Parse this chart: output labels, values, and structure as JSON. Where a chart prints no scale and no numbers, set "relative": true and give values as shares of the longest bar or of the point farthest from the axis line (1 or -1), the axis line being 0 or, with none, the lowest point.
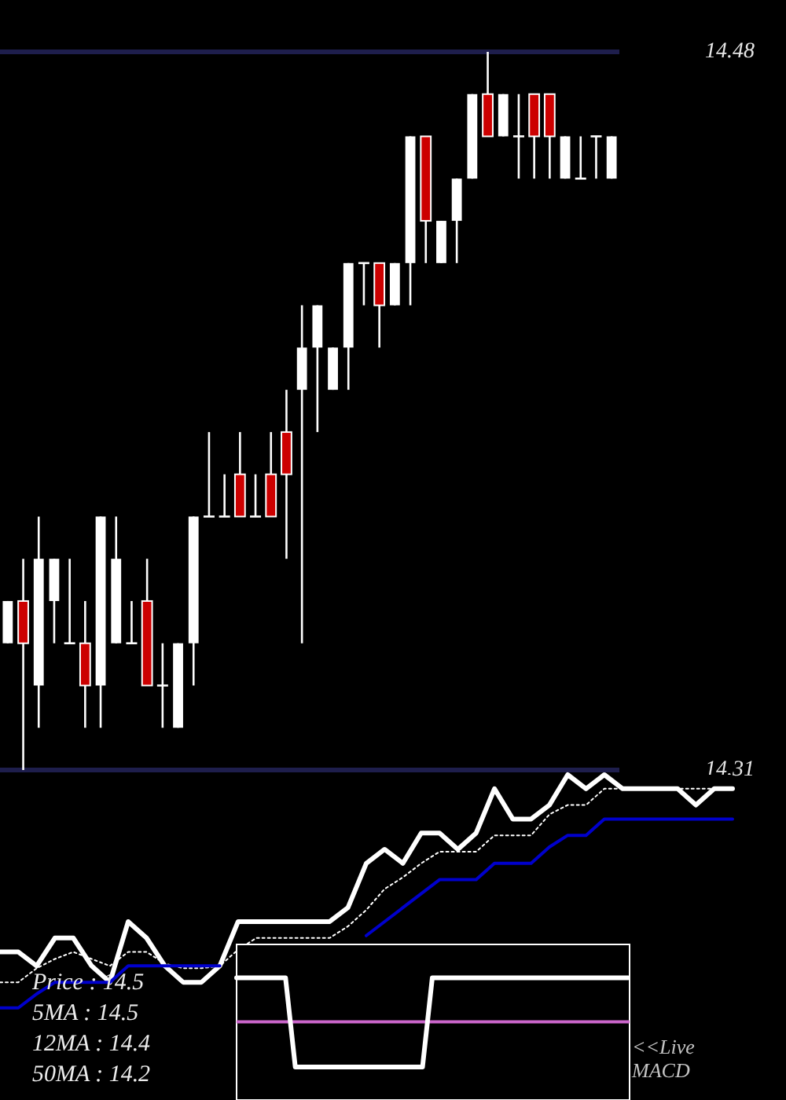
{
  "chart_data": [
    {
      "type": "candlestick",
      "categories": [
        null,
        null,
        null,
        null,
        null,
        null,
        null,
        null,
        null,
        null,
        null,
        null,
        null,
        null,
        null,
        null,
        null,
        null,
        null,
        null,
        null,
        null,
        null,
        null,
        null,
        null,
        null,
        null,
        null,
        null,
        null,
        null,
        null,
        null,
        null,
        null,
        null,
        null,
        null,
        null
      ],
      "ohlc": [
        [
          14.34,
          14.35,
          14.34,
          14.35
        ],
        [
          14.35,
          14.36,
          14.31,
          14.34
        ],
        [
          14.33,
          14.37,
          14.32,
          14.36
        ],
        [
          14.35,
          14.36,
          14.34,
          14.36
        ],
        [
          14.34,
          14.36,
          14.34,
          14.34
        ],
        [
          14.34,
          14.35,
          14.32,
          14.33
        ],
        [
          14.33,
          14.37,
          14.32,
          14.37
        ],
        [
          14.34,
          14.37,
          14.34,
          14.36
        ],
        [
          14.34,
          14.35,
          14.34,
          14.34
        ],
        [
          14.35,
          14.36,
          14.33,
          14.33
        ],
        [
          14.33,
          14.34,
          14.32,
          14.33
        ],
        [
          14.32,
          14.34,
          14.32,
          14.34
        ],
        [
          14.34,
          14.37,
          14.33,
          14.37
        ],
        [
          14.37,
          14.39,
          14.37,
          14.37
        ],
        [
          14.37,
          14.38,
          14.37,
          14.37
        ],
        [
          14.38,
          14.39,
          14.37,
          14.37
        ],
        [
          14.37,
          14.38,
          14.37,
          14.37
        ],
        [
          14.38,
          14.39,
          14.37,
          14.37
        ],
        [
          14.39,
          14.4,
          14.36,
          14.38
        ],
        [
          14.4,
          14.42,
          14.34,
          14.41
        ],
        [
          14.41,
          14.42,
          14.39,
          14.42
        ],
        [
          14.4,
          14.41,
          14.4,
          14.41
        ],
        [
          14.41,
          14.43,
          14.4,
          14.43
        ],
        [
          14.43,
          14.43,
          14.42,
          14.43
        ],
        [
          14.43,
          14.43,
          14.41,
          14.42
        ],
        [
          14.42,
          14.43,
          14.42,
          14.43
        ],
        [
          14.43,
          14.46,
          14.42,
          14.46
        ],
        [
          14.46,
          14.46,
          14.43,
          14.44
        ],
        [
          14.43,
          14.44,
          14.43,
          14.44
        ],
        [
          14.44,
          14.45,
          14.43,
          14.45
        ],
        [
          14.45,
          14.47,
          14.45,
          14.47
        ],
        [
          14.47,
          14.48,
          14.46,
          14.46
        ],
        [
          14.46,
          14.47,
          14.46,
          14.47
        ],
        [
          14.46,
          14.47,
          14.45,
          14.46
        ],
        [
          14.47,
          14.47,
          14.45,
          14.46
        ],
        [
          14.47,
          14.47,
          14.45,
          14.46
        ],
        [
          14.45,
          14.46,
          14.45,
          14.46
        ],
        [
          14.45,
          14.46,
          14.45,
          14.45
        ],
        [
          14.46,
          14.46,
          14.45,
          14.46
        ],
        [
          14.45,
          14.46,
          14.45,
          14.46
        ]
      ],
      "colors": [
        "#ffffff",
        "#cc0000",
        "#ffffff",
        "#ffffff",
        "#ffffff",
        "#cc0000",
        "#ffffff",
        "#ffffff",
        "#ffffff",
        "#cc0000",
        "#ffffff",
        "#ffffff",
        "#ffffff",
        "#ffffff",
        "#ffffff",
        "#cc0000",
        "#ffffff",
        "#cc0000",
        "#cc0000",
        "#ffffff",
        "#ffffff",
        "#ffffff",
        "#ffffff",
        "#ffffff",
        "#cc0000",
        "#ffffff",
        "#ffffff",
        "#cc0000",
        "#ffffff",
        "#ffffff",
        "#ffffff",
        "#cc0000",
        "#ffffff",
        "#ffffff",
        "#cc0000",
        "#cc0000",
        "#ffffff",
        "#ffffff",
        "#ffffff",
        "#ffffff"
      ],
      "ylim": [
        14.31,
        14.48
      ],
      "yticks": [
        14.48,
        14.31
      ],
      "grid": "y"
    },
    {
      "type": "line",
      "relative": true,
      "categories": [
        null,
        null,
        null,
        null,
        null,
        null,
        null,
        null,
        null,
        null,
        null,
        null,
        null,
        null,
        null,
        null,
        null,
        null,
        null,
        null,
        null,
        null,
        null,
        null,
        null,
        null,
        null,
        null,
        null,
        null,
        null,
        null,
        null,
        null,
        null,
        null,
        null,
        null,
        null,
        null,
        null
      ],
      "series": [
        {
          "color": "#ffffff",
          "line_style": "solid",
          "values": [
            0.24,
            0.24,
            0.18,
            0.3,
            0.3,
            0.18,
            0.11,
            0.37,
            0.3,
            0.18,
            0.11,
            0.11,
            0.18,
            0.37,
            0.37,
            0.37,
            0.37,
            0.37,
            0.37,
            0.43,
            0.62,
            0.68,
            0.62,
            0.75,
            0.75,
            0.68,
            0.75,
            0.94,
            0.81,
            0.81,
            0.87,
            1,
            0.94,
            1,
            0.94,
            0.94,
            0.94,
            0.94,
            0.87,
            0.94,
            0.94
          ]
        },
        {
          "color": "#ffffff",
          "line_style": "dotted",
          "values": [
            0.11,
            0.11,
            0.17,
            0.21,
            0.24,
            0.21,
            0.18,
            0.24,
            0.24,
            0.19,
            0.17,
            0.17,
            0.18,
            0.25,
            0.3,
            0.3,
            0.3,
            0.3,
            0.3,
            0.35,
            0.42,
            0.51,
            0.56,
            0.62,
            0.67,
            0.67,
            0.67,
            0.74,
            0.74,
            0.74,
            0.83,
            0.87,
            0.87,
            0.94,
            0.94,
            0.94,
            0.94,
            0.94,
            0.94,
            0.94,
            0.94
          ]
        },
        {
          "color": "#0000cc",
          "line_style": "solid",
          "values": [
            0,
            0,
            0.06,
            0.11,
            0.11,
            0.11,
            0.11,
            0.18,
            0.18,
            0.18,
            0.18,
            0.18,
            0.18,
            null,
            null,
            null,
            null,
            null,
            null,
            null,
            0.31,
            0.37,
            0.43,
            0.49,
            0.55,
            0.55,
            0.55,
            0.62,
            0.62,
            0.62,
            0.69,
            0.74,
            0.74,
            0.81,
            0.81,
            0.81,
            0.81,
            0.81,
            0.81,
            0.81,
            0.81
          ]
        }
      ],
      "annotations": [
        "Price : 14.5",
        "5MA : 14.5",
        "12MA : 14.4",
        "50MA : 14.2"
      ]
    },
    {
      "type": "line",
      "relative": true,
      "categories": [
        null,
        null,
        null,
        null,
        null,
        null,
        null,
        null,
        null,
        null,
        null,
        null,
        null,
        null,
        null,
        null,
        null,
        null,
        null,
        null,
        null,
        null,
        null,
        null,
        null,
        null,
        null,
        null,
        null,
        null,
        null,
        null,
        null,
        null,
        null,
        null,
        null,
        null,
        null,
        null,
        null
      ],
      "series": [
        {
          "color": "#ffffff",
          "values": [
            1,
            1,
            1,
            1,
            1,
            1,
            0.27,
            0.27,
            0.27,
            0.27,
            0.27,
            0.27,
            0.27,
            0.27,
            0.27,
            0.27,
            0.27,
            0.27,
            0.27,
            0.27,
            1,
            1,
            1,
            1,
            1,
            1,
            1,
            1,
            1,
            1,
            1,
            1,
            1,
            1,
            1,
            1,
            1,
            1,
            1,
            1,
            1
          ]
        }
      ],
      "ref_lines": [
        {
          "axis": "y",
          "value": 0.64,
          "color": "#cc66cc"
        }
      ],
      "annotations": [
        "<<Live MACD"
      ]
    }
  ]
}
